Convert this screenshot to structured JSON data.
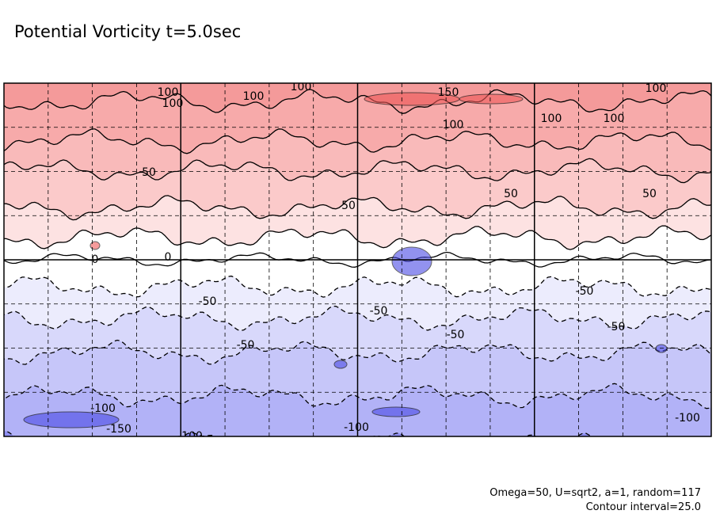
{
  "chart_data": {
    "type": "contour",
    "title": "Potential Vorticity t=5.0sec",
    "notes": [
      "Omega=50, U=sqrt2, a=1, random=117",
      "Contour interval=25.0"
    ],
    "bands": [
      {
        "from": 125,
        "to": 150,
        "color": "#f49a9a"
      },
      {
        "from": 100,
        "to": 125,
        "color": "#f7aaaa"
      },
      {
        "from": 75,
        "to": 100,
        "color": "#f9baba"
      },
      {
        "from": 50,
        "to": 75,
        "color": "#fbcaca"
      },
      {
        "from": 25,
        "to": 50,
        "color": "#fde2e2"
      },
      {
        "from": 0,
        "to": 25,
        "color": "#ffffff"
      },
      {
        "from": -25,
        "to": 0,
        "color": "#ffffff"
      },
      {
        "from": -50,
        "to": -25,
        "color": "#ececfd"
      },
      {
        "from": -75,
        "to": -50,
        "color": "#d8d8fb"
      },
      {
        "from": -100,
        "to": -75,
        "color": "#c6c6f9"
      },
      {
        "from": -125,
        "to": -100,
        "color": "#b2b2f7"
      }
    ],
    "contour_labels": [
      100,
      100,
      100,
      100,
      150,
      100,
      100,
      100,
      100,
      50,
      50,
      50,
      50,
      0,
      0,
      -50,
      -50,
      -50,
      -50,
      -50,
      -50,
      -100,
      -100,
      -100,
      -100,
      -150
    ]
  }
}
